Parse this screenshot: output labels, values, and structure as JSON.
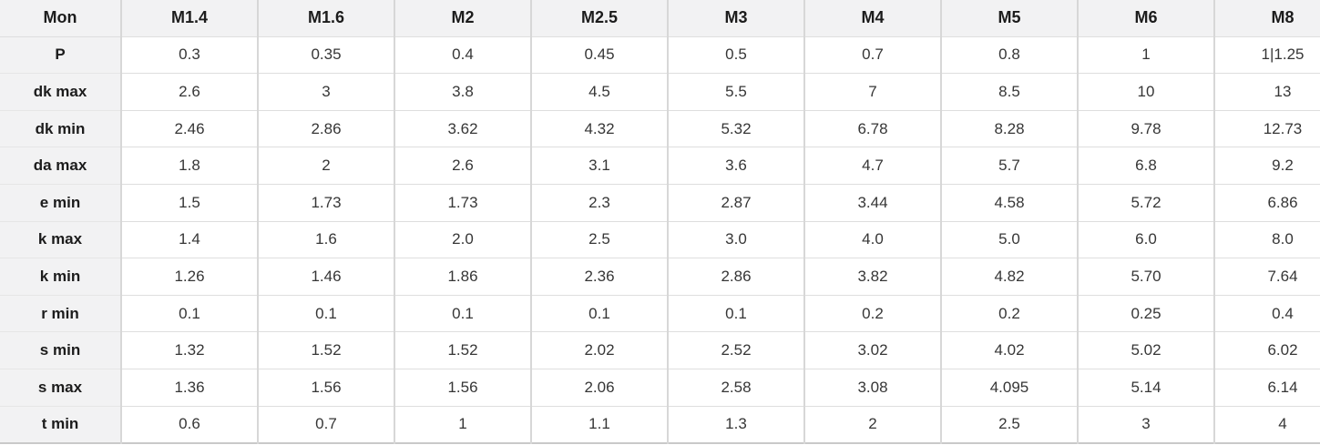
{
  "table": {
    "corner_label": "Mon",
    "column_headers": [
      "M1.4",
      "M1.6",
      "M2",
      "M2.5",
      "M3",
      "M4",
      "M5",
      "M6",
      "M8"
    ],
    "rows": [
      {
        "label": "P",
        "values": [
          "0.3",
          "0.35",
          "0.4",
          "0.45",
          "0.5",
          "0.7",
          "0.8",
          "1",
          "1|1.25"
        ]
      },
      {
        "label": "dk max",
        "values": [
          "2.6",
          "3",
          "3.8",
          "4.5",
          "5.5",
          "7",
          "8.5",
          "10",
          "13"
        ]
      },
      {
        "label": "dk min",
        "values": [
          "2.46",
          "2.86",
          "3.62",
          "4.32",
          "5.32",
          "6.78",
          "8.28",
          "9.78",
          "12.73"
        ]
      },
      {
        "label": "da max",
        "values": [
          "1.8",
          "2",
          "2.6",
          "3.1",
          "3.6",
          "4.7",
          "5.7",
          "6.8",
          "9.2"
        ]
      },
      {
        "label": "e min",
        "values": [
          "1.5",
          "1.73",
          "1.73",
          "2.3",
          "2.87",
          "3.44",
          "4.58",
          "5.72",
          "6.86"
        ]
      },
      {
        "label": "k max",
        "values": [
          "1.4",
          "1.6",
          "2.0",
          "2.5",
          "3.0",
          "4.0",
          "5.0",
          "6.0",
          "8.0"
        ]
      },
      {
        "label": "k min",
        "values": [
          "1.26",
          "1.46",
          "1.86",
          "2.36",
          "2.86",
          "3.82",
          "4.82",
          "5.70",
          "7.64"
        ]
      },
      {
        "label": "r min",
        "values": [
          "0.1",
          "0.1",
          "0.1",
          "0.1",
          "0.1",
          "0.2",
          "0.2",
          "0.25",
          "0.4"
        ]
      },
      {
        "label": "s min",
        "values": [
          "1.32",
          "1.52",
          "1.52",
          "2.02",
          "2.52",
          "3.02",
          "4.02",
          "5.02",
          "6.02"
        ]
      },
      {
        "label": "s max",
        "values": [
          "1.36",
          "1.56",
          "1.56",
          "2.06",
          "2.58",
          "3.08",
          "4.095",
          "5.14",
          "6.14"
        ]
      },
      {
        "label": "t min",
        "values": [
          "0.6",
          "0.7",
          "1",
          "1.1",
          "1.3",
          "2",
          "2.5",
          "3",
          "4"
        ]
      }
    ],
    "colors": {
      "header_bg": "#f2f2f3",
      "cell_bg": "#ffffff",
      "border_vertical": "#d7d7d7",
      "border_horizontal": "#dedede",
      "bottom_border": "#c9c9c9",
      "header_text": "#1c1c1c",
      "cell_text": "#363636"
    }
  }
}
